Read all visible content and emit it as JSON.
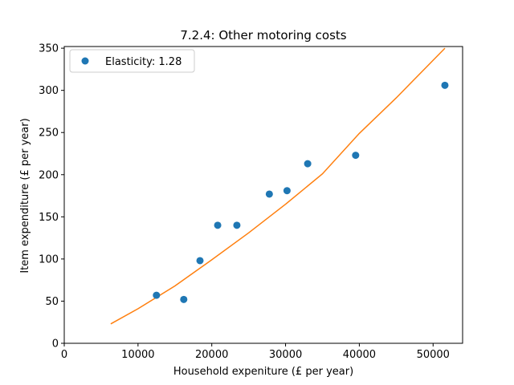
{
  "chart_data": {
    "type": "scatter",
    "title": "7.2.4: Other motoring costs",
    "xlabel": "Household expeniture (£ per year)",
    "ylabel": "Item expenditure (£ per year)",
    "xlim": [
      0,
      54000
    ],
    "ylim": [
      0,
      352
    ],
    "xticks": [
      0,
      10000,
      20000,
      30000,
      40000,
      50000
    ],
    "yticks": [
      0,
      50,
      100,
      150,
      200,
      250,
      300,
      350
    ],
    "grid": false,
    "legend": {
      "placement": "top-left",
      "entries": [
        "Elasticity: 1.28"
      ]
    },
    "series": [
      {
        "name": "Elasticity: 1.28",
        "kind": "scatter",
        "color": "#1f77b4",
        "points": [
          {
            "x": 12500,
            "y": 57
          },
          {
            "x": 16200,
            "y": 52
          },
          {
            "x": 18400,
            "y": 98
          },
          {
            "x": 20800,
            "y": 140
          },
          {
            "x": 23400,
            "y": 140
          },
          {
            "x": 27800,
            "y": 177
          },
          {
            "x": 30200,
            "y": 181
          },
          {
            "x": 33000,
            "y": 213
          },
          {
            "x": 39500,
            "y": 223
          },
          {
            "x": 51600,
            "y": 306
          }
        ]
      },
      {
        "kind": "line",
        "color": "#ff7f0e",
        "points": [
          {
            "x": 6300,
            "y": 23
          },
          {
            "x": 10000,
            "y": 41
          },
          {
            "x": 15000,
            "y": 68
          },
          {
            "x": 20000,
            "y": 99
          },
          {
            "x": 25000,
            "y": 131
          },
          {
            "x": 30000,
            "y": 165
          },
          {
            "x": 35000,
            "y": 201
          },
          {
            "x": 40000,
            "y": 249
          },
          {
            "x": 45000,
            "y": 291
          },
          {
            "x": 51600,
            "y": 350
          }
        ]
      }
    ]
  }
}
